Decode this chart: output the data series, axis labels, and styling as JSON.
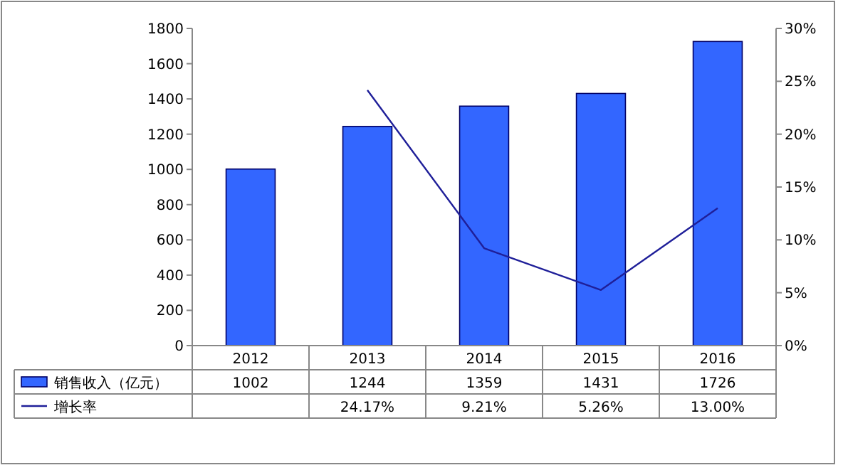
{
  "chart_data": {
    "type": "bar",
    "categories": [
      "2012",
      "2013",
      "2014",
      "2015",
      "2016"
    ],
    "series": [
      {
        "name": "销售收入（亿元）",
        "color": "#3366ff",
        "values": [
          1002,
          1244,
          1359,
          1431,
          1726
        ],
        "value_labels": [
          "1002",
          "1244",
          "1359",
          "1431",
          "1726"
        ]
      },
      {
        "name": "增长率",
        "type": "line",
        "axis": "y2",
        "color": "#1f1f99",
        "values": [
          null,
          24.17,
          9.21,
          5.26,
          13.0
        ],
        "value_labels": [
          null,
          "24.17%",
          "9.21%",
          "5.26%",
          "13.00%"
        ]
      }
    ],
    "ylim": [
      0,
      1800
    ],
    "yticks": [
      0,
      200,
      400,
      600,
      800,
      1000,
      1200,
      1400,
      1600,
      1800
    ],
    "y2lim": [
      0,
      30
    ],
    "y2ticks": [
      {
        "value": 0,
        "label": "0%"
      },
      {
        "value": 5,
        "label": "5%"
      },
      {
        "value": 10,
        "label": "10%"
      },
      {
        "value": 15,
        "label": "15%"
      },
      {
        "value": 20,
        "label": "20%"
      },
      {
        "value": 25,
        "label": "25%"
      },
      {
        "value": 30,
        "label": "30%"
      }
    ],
    "legend": "bottom",
    "marker": "none",
    "line_style": "solid"
  }
}
